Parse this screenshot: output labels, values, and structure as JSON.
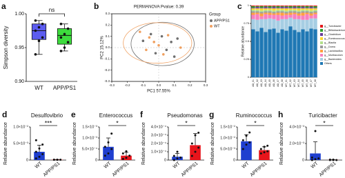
{
  "chart_data": [
    {
      "type": "box",
      "panel": "a",
      "ylabel": "Simpson diversity",
      "categories": [
        "WT",
        "APP/PS1"
      ],
      "colors": [
        "#5c5cf0",
        "#3ddc3d"
      ],
      "boxes": [
        {
          "min": 0.94,
          "q1": 0.962,
          "median": 0.975,
          "q3": 0.985,
          "max": 0.99
        },
        {
          "min": 0.945,
          "q1": 0.955,
          "median": 0.968,
          "q3": 0.978,
          "max": 0.985
        }
      ],
      "points": [
        [
          0.94,
          0.96,
          0.965,
          0.975,
          0.98,
          0.985,
          0.99
        ],
        [
          0.945,
          0.95,
          0.958,
          0.965,
          0.97,
          0.978,
          0.985
        ]
      ],
      "ylim": [
        0.9,
        1.0
      ],
      "yticks": [
        {
          "value": 0.9,
          "label": "0.90"
        },
        {
          "value": 0.95,
          "label": "0.95"
        },
        {
          "value": 1,
          "label": "1.00"
        }
      ],
      "annotation": "ns"
    },
    {
      "type": "scatter",
      "panel": "b",
      "title": "PERMANOVA Pvalue: 0.39",
      "xlabel": "PC1 57.55%",
      "ylabel": "PC2 15.12%",
      "legend_title": "Group",
      "series": [
        {
          "name": "APP/PS1",
          "color": "#6e6e6e",
          "x": [
            -0.05,
            0.02,
            0.08,
            -0.1,
            0.05,
            0.12,
            -0.02,
            0.1
          ],
          "y": [
            0.12,
            0.1,
            0.05,
            0.06,
            -0.02,
            0.08,
            -0.05,
            -0.08
          ]
        },
        {
          "name": "WT",
          "color": "#f0a060",
          "x": [
            -0.12,
            -0.06,
            0.0,
            0.06,
            -0.08,
            0.03,
            -0.03,
            0.14
          ],
          "y": [
            0.14,
            0.09,
            0.02,
            0.11,
            -0.02,
            -0.06,
            0.05,
            0.0
          ]
        }
      ],
      "xlim": [
        -0.3,
        0.3
      ],
      "ylim": [
        -0.3,
        0.3
      ],
      "xticks": [
        -0.3,
        -0.2,
        -0.1,
        {
          "value": 0,
          "label": "0.0"
        },
        0.1,
        0.2,
        0.3
      ],
      "yticks": [
        -0.3,
        -0.2,
        -0.1,
        {
          "value": 0,
          "label": "0.0"
        },
        0.1,
        0.2,
        0.3
      ]
    },
    {
      "type": "stacked_bar",
      "panel": "c",
      "ylabel": "Relative abundance",
      "categories": [
        "AD_01",
        "AD_02",
        "AD_03",
        "AD_04",
        "AD_05",
        "AD_06",
        "AD_07",
        "AD_08",
        "WT_01",
        "WT_02",
        "WT_03",
        "WT_04",
        "WT_05",
        "WT_06",
        "WT_07",
        "WT_08"
      ],
      "series": [
        {
          "name": "g__Turicibacter",
          "color": "#e31a1c",
          "values": [
            0.01,
            0.01,
            0.01,
            0.01,
            0.01,
            0.01,
            0.01,
            0.01,
            0.01,
            0.01,
            0.01,
            0.01,
            0.01,
            0.01,
            0.01,
            0.01
          ]
        },
        {
          "name": "g__Bifidobacterium",
          "color": "#33a02c",
          "values": [
            0.02,
            0.01,
            0.02,
            0.01,
            0.02,
            0.01,
            0.02,
            0.01,
            0.01,
            0.02,
            0.01,
            0.02,
            0.01,
            0.02,
            0.01,
            0.02
          ]
        },
        {
          "name": "g__Clostridium",
          "color": "#6a3d9a",
          "values": [
            0.01,
            0.02,
            0.01,
            0.02,
            0.01,
            0.02,
            0.01,
            0.02,
            0.02,
            0.01,
            0.02,
            0.01,
            0.02,
            0.01,
            0.02,
            0.01
          ]
        },
        {
          "name": "g__Ruminococcus",
          "color": "#ffd92f",
          "values": [
            0.02,
            0.02,
            0.03,
            0.02,
            0.02,
            0.03,
            0.02,
            0.02,
            0.03,
            0.02,
            0.02,
            0.03,
            0.02,
            0.02,
            0.03,
            0.02
          ]
        },
        {
          "name": "g__Blautia",
          "color": "#b2df8a",
          "values": [
            0.02,
            0.02,
            0.02,
            0.02,
            0.02,
            0.02,
            0.02,
            0.02,
            0.02,
            0.02,
            0.02,
            0.02,
            0.02,
            0.02,
            0.02,
            0.02
          ]
        },
        {
          "name": "g__Dorea",
          "color": "#999999",
          "values": [
            0.02,
            0.02,
            0.02,
            0.02,
            0.02,
            0.02,
            0.02,
            0.02,
            0.02,
            0.02,
            0.02,
            0.02,
            0.02,
            0.02,
            0.02,
            0.02
          ]
        },
        {
          "name": "g__Lactobacillus",
          "color": "#ff9f40",
          "values": [
            0.03,
            0.02,
            0.04,
            0.02,
            0.03,
            0.02,
            0.03,
            0.04,
            0.02,
            0.03,
            0.02,
            0.03,
            0.04,
            0.02,
            0.03,
            0.02
          ]
        },
        {
          "name": "g__Muribaculum",
          "color": "#f781bf",
          "values": [
            0.06,
            0.08,
            0.04,
            0.07,
            0.05,
            0.06,
            0.08,
            0.05,
            0.06,
            0.04,
            0.07,
            0.05,
            0.06,
            0.08,
            0.04,
            0.06
          ]
        },
        {
          "name": "g__Bacteroides",
          "color": "#a6cee3",
          "values": [
            0.14,
            0.16,
            0.12,
            0.18,
            0.15,
            0.13,
            0.17,
            0.14,
            0.16,
            0.12,
            0.15,
            0.18,
            0.13,
            0.16,
            0.14,
            0.15
          ]
        },
        {
          "name": "Others",
          "color": "#1f78b4",
          "values": [
            0.67,
            0.64,
            0.69,
            0.63,
            0.67,
            0.68,
            0.62,
            0.67,
            0.65,
            0.71,
            0.66,
            0.63,
            0.67,
            0.64,
            0.68,
            0.67
          ]
        }
      ],
      "ylim": [
        0,
        1
      ],
      "yticks": [
        0,
        0.25,
        0.5,
        0.75,
        1
      ]
    },
    {
      "type": "bar",
      "panel": "d",
      "title": "Desulfovibrio",
      "ylabel": "Relative abundance",
      "categories": [
        "WT",
        "APP/PS1"
      ],
      "colors": [
        "#1f3fcf",
        "#e8141b"
      ],
      "values": [
        0.0025,
        0.0001
      ],
      "errors": [
        0.002,
        5e-05
      ],
      "points": [
        [
          0.0005,
          0.001,
          0.0018,
          0.0025,
          0.0035,
          0.0047,
          0.006
        ],
        [
          0.0001,
          0.0001,
          0.0001,
          0.0001,
          0.0001
        ]
      ],
      "ylim": [
        0,
        0.01
      ],
      "yticks": [
        0,
        {
          "value": 0.005,
          "label": "5.0×10⁻³"
        },
        {
          "value": 0.01,
          "label": "1.0×10⁻²"
        }
      ],
      "annotation": "***"
    },
    {
      "type": "bar",
      "panel": "e",
      "title": "Enterococcus",
      "ylabel": "Relative abundance",
      "categories": [
        "WT",
        "APP/PS1"
      ],
      "colors": [
        "#1f3fcf",
        "#e8141b"
      ],
      "values": [
        0.0006,
        0.0002
      ],
      "errors": [
        0.0004,
        0.00015
      ],
      "points": [
        [
          0.0002,
          0.0003,
          0.0005,
          0.0006,
          0.0008,
          0.0012
        ],
        [
          5e-05,
          0.0001,
          0.0002,
          0.0003,
          0.0004
        ]
      ],
      "ylim": [
        0,
        0.0015
      ],
      "yticks": [
        0,
        {
          "value": 0.0005,
          "label": "5.0×10⁻⁴"
        },
        {
          "value": 0.001,
          "label": "1.0×10⁻³"
        },
        {
          "value": 0.0015,
          "label": "1.5×10⁻³"
        }
      ],
      "annotation": "*"
    },
    {
      "type": "bar",
      "panel": "f",
      "title": "Pseudomonas",
      "ylabel": "Relative abundance",
      "categories": [
        "WT",
        "APP/PS1"
      ],
      "colors": [
        "#1f3fcf",
        "#e8141b"
      ],
      "values": [
        4e-05,
        0.00018
      ],
      "errors": [
        4e-05,
        0.00014
      ],
      "points": [
        [
          0,
          2e-05,
          3e-05,
          5e-05,
          0.0001
        ],
        [
          5e-05,
          0.0001,
          0.00015,
          0.0002,
          0.0003,
          0.00033
        ]
      ],
      "ylim": [
        0,
        0.0004
      ],
      "yticks": [
        0,
        {
          "value": 0.0001,
          "label": "1.0×10⁻⁴"
        },
        {
          "value": 0.0002,
          "label": "2.0×10⁻⁴"
        },
        {
          "value": 0.0003,
          "label": "3.0×10⁻⁴"
        },
        {
          "value": 0.0004,
          "label": "4.0×10⁻⁴"
        }
      ],
      "annotation": "*"
    },
    {
      "type": "bar",
      "panel": "g",
      "title": "Ruminococcus",
      "ylabel": "Relative abundance",
      "categories": [
        "WT",
        "APP/PS1"
      ],
      "colors": [
        "#1f3fcf",
        "#e8141b"
      ],
      "values": [
        0.0085,
        0.0045
      ],
      "errors": [
        0.003,
        0.0015
      ],
      "points": [
        [
          0.005,
          0.007,
          0.008,
          0.009,
          0.011,
          0.0125
        ],
        [
          0.003,
          0.0035,
          0.004,
          0.005,
          0.006,
          0.0065
        ]
      ],
      "ylim": [
        0,
        0.015
      ],
      "yticks": [
        0,
        {
          "value": 0.005,
          "label": "5.0×10⁻³"
        },
        {
          "value": 0.01,
          "label": "1.0×10⁻²"
        },
        {
          "value": 0.015,
          "label": "1.5×10⁻²"
        }
      ],
      "annotation": "*"
    },
    {
      "type": "bar",
      "panel": "h",
      "title": "Turicibacter",
      "ylabel": "Relative abundance",
      "categories": [
        "WT",
        "APP/PS1"
      ],
      "colors": [
        "#1f3fcf",
        "#e8141b"
      ],
      "values": [
        0.0008,
        2e-05
      ],
      "errors": [
        0.0014,
        2e-05
      ],
      "points": [
        [
          0,
          0.0001,
          0.0002,
          0.0003,
          0.0035
        ],
        [
          0,
          0,
          0,
          5e-05,
          5e-05
        ]
      ],
      "ylim": [
        0,
        0.004
      ],
      "yticks": [
        0,
        {
          "value": 0.002,
          "label": "2.0×10⁻³"
        },
        {
          "value": 0.004,
          "label": "4.0×10⁻³"
        }
      ],
      "annotation": "*"
    }
  ]
}
